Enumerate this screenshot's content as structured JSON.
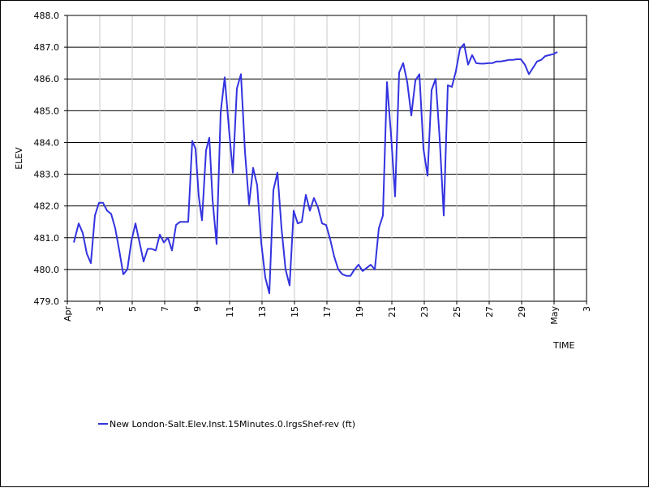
{
  "chart_data": {
    "type": "line",
    "ylabel": "ELEV",
    "xlabel": "TIME",
    "ylim": [
      479.0,
      488.0
    ],
    "y_ticks": [
      "479.0",
      "480.0",
      "481.0",
      "482.0",
      "483.0",
      "484.0",
      "485.0",
      "486.0",
      "487.0",
      "488.0"
    ],
    "x_ticks": [
      {
        "day": 1,
        "label": "Apr"
      },
      {
        "day": 3,
        "label": "3"
      },
      {
        "day": 5,
        "label": "5"
      },
      {
        "day": 7,
        "label": "7"
      },
      {
        "day": 9,
        "label": "9"
      },
      {
        "day": 11,
        "label": "11"
      },
      {
        "day": 13,
        "label": "13"
      },
      {
        "day": 15,
        "label": "15"
      },
      {
        "day": 17,
        "label": "17"
      },
      {
        "day": 19,
        "label": "19"
      },
      {
        "day": 21,
        "label": "21"
      },
      {
        "day": 23,
        "label": "23"
      },
      {
        "day": 25,
        "label": "25"
      },
      {
        "day": 27,
        "label": "27"
      },
      {
        "day": 29,
        "label": "29"
      },
      {
        "day": 31,
        "label": "May"
      },
      {
        "day": 33,
        "label": "3"
      }
    ],
    "xlim": [
      1,
      33
    ],
    "grid": true,
    "line_color": "#3333e0",
    "series": [
      {
        "name": "New London-Salt.Elev.Inst.15Minutes.0.lrgsShef-rev (ft)",
        "x": [
          1.4,
          1.7,
          1.95,
          2.2,
          2.45,
          2.7,
          2.95,
          3.2,
          3.45,
          3.7,
          3.95,
          4.2,
          4.45,
          4.7,
          4.95,
          5.2,
          5.45,
          5.7,
          5.95,
          6.2,
          6.45,
          6.7,
          6.95,
          7.2,
          7.45,
          7.7,
          7.95,
          8.2,
          8.45,
          8.7,
          8.9,
          9.1,
          9.3,
          9.55,
          9.75,
          9.95,
          10.2,
          10.45,
          10.7,
          10.95,
          11.2,
          11.45,
          11.7,
          11.95,
          12.2,
          12.45,
          12.7,
          12.95,
          13.2,
          13.45,
          13.7,
          13.95,
          14.2,
          14.45,
          14.7,
          14.95,
          15.2,
          15.45,
          15.7,
          15.95,
          16.2,
          16.45,
          16.7,
          16.95,
          17.2,
          17.45,
          17.7,
          17.95,
          18.2,
          18.45,
          18.7,
          18.95,
          19.2,
          19.45,
          19.7,
          19.95,
          20.2,
          20.45,
          20.7,
          20.95,
          21.2,
          21.45,
          21.7,
          21.95,
          22.2,
          22.45,
          22.7,
          22.95,
          23.2,
          23.45,
          23.7,
          23.95,
          24.2,
          24.45,
          24.7,
          24.95,
          25.2,
          25.45,
          25.7,
          25.95,
          26.2,
          26.45,
          26.7,
          26.95,
          27.2,
          27.45,
          27.7,
          27.95,
          28.2,
          28.45,
          28.7,
          28.95,
          29.2,
          29.45,
          29.7,
          29.95,
          30.2,
          30.45,
          30.7,
          30.95,
          31.2
        ],
        "values": [
          480.85,
          481.45,
          481.15,
          480.5,
          480.2,
          481.7,
          482.1,
          482.1,
          481.85,
          481.75,
          481.3,
          480.6,
          479.85,
          480.0,
          480.9,
          481.45,
          480.85,
          480.25,
          480.65,
          480.65,
          480.6,
          481.1,
          480.85,
          481.0,
          480.6,
          481.4,
          481.5,
          481.5,
          481.5,
          484.05,
          483.8,
          482.3,
          481.55,
          483.75,
          484.15,
          482.2,
          480.8,
          484.95,
          486.05,
          484.5,
          483.05,
          485.7,
          486.15,
          483.7,
          482.05,
          483.2,
          482.65,
          480.85,
          479.75,
          479.25,
          482.5,
          483.05,
          481.3,
          480.0,
          479.5,
          481.85,
          481.45,
          481.5,
          482.35,
          481.85,
          482.25,
          481.95,
          481.45,
          481.4,
          480.95,
          480.4,
          480.0,
          479.85,
          479.8,
          479.8,
          480.0,
          480.15,
          479.95,
          480.05,
          480.15,
          480.0,
          481.3,
          481.7,
          485.9,
          484.25,
          482.3,
          486.2,
          486.5,
          485.9,
          484.85,
          485.95,
          486.15,
          483.8,
          482.95,
          485.65,
          486.0,
          484.1,
          481.7,
          485.8,
          485.75,
          486.25,
          486.95,
          487.1,
          486.45,
          486.75,
          486.5,
          486.48,
          486.48,
          486.5,
          486.5,
          486.55,
          486.55,
          486.57,
          486.6,
          486.6,
          486.62,
          486.62,
          486.45,
          486.15,
          486.35,
          486.55,
          486.6,
          486.72,
          486.75,
          486.78,
          486.85
        ]
      }
    ],
    "legend": {
      "placement": "bottom-left"
    }
  }
}
